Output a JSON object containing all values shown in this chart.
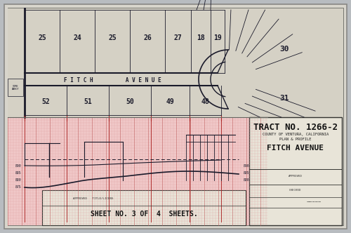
{
  "bg_outer": "#b8bcc0",
  "bg_inner": "#dddad2",
  "bg_plan": "#d8d4c8",
  "bg_profile": "#f0c8c8",
  "line_color": "#1a1a2a",
  "road_color": "#1a1a2a",
  "grid_color_h": "#d08080",
  "grid_color_v": "#c87878",
  "title_block_bg": "#e8e4d8",
  "title_block_border": "#333330",
  "title_main": "TRACT NO. 1266-2",
  "title_sub1": "COUNTY OF VENTURA, CALIFORNIA",
  "title_sub2": "PLAN & PROFILE",
  "title_road": "FITCH AVENUE",
  "sheet_text": "SHEET NO. 3 OF  4  SHEETS.",
  "lot_numbers_top": [
    "25",
    "24",
    "25",
    "26",
    "27",
    "18",
    "19"
  ],
  "lot_numbers_bot": [
    "52",
    "51",
    "50",
    "49",
    "48"
  ],
  "lot_30": "30",
  "lot_31": "31",
  "road_name": "F I T C H          A V E N U E"
}
